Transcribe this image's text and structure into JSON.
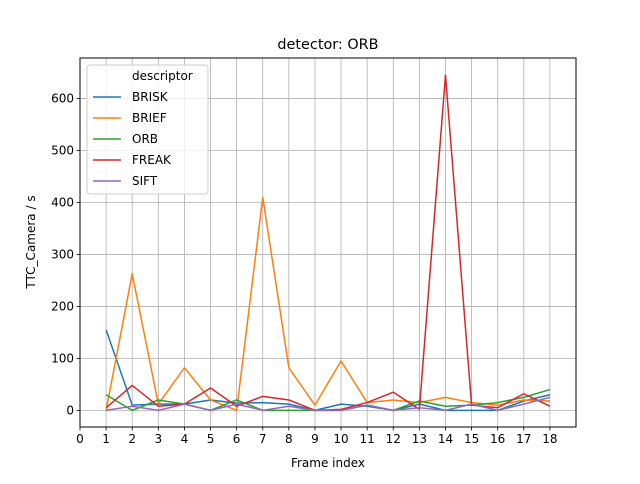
{
  "chart_data": {
    "type": "line",
    "title": "detector: ORB",
    "xlabel": "Frame index",
    "ylabel": "TTC_Camera / s",
    "xlim": [
      0,
      19
    ],
    "ylim": [
      -32,
      678
    ],
    "xticks": [
      0,
      1,
      2,
      3,
      4,
      5,
      6,
      7,
      8,
      9,
      10,
      11,
      12,
      13,
      14,
      15,
      16,
      17,
      18
    ],
    "yticks": [
      0,
      100,
      200,
      300,
      400,
      500,
      600
    ],
    "grid": true,
    "legend": {
      "title": "descriptor",
      "placement": "top-left"
    },
    "x": [
      1,
      2,
      3,
      4,
      5,
      6,
      7,
      8,
      9,
      10,
      11,
      12,
      13,
      14,
      15,
      16,
      17,
      18
    ],
    "series": [
      {
        "name": "BRISK",
        "color": "#1f77b4",
        "values": [
          155,
          10,
          12,
          12,
          20,
          14,
          15,
          12,
          0,
          12,
          8,
          0,
          12,
          0,
          0,
          0,
          18,
          30
        ]
      },
      {
        "name": "BRIEF",
        "color": "#ff7f0e",
        "values": [
          0,
          263,
          12,
          82,
          20,
          0,
          410,
          82,
          10,
          95,
          15,
          20,
          15,
          25,
          15,
          10,
          20,
          18
        ]
      },
      {
        "name": "ORB",
        "color": "#2ca02c",
        "values": [
          30,
          0,
          20,
          12,
          0,
          20,
          0,
          0,
          0,
          0,
          10,
          0,
          18,
          8,
          10,
          15,
          25,
          40
        ]
      },
      {
        "name": "FREAK",
        "color": "#d62728",
        "values": [
          5,
          48,
          8,
          12,
          43,
          8,
          27,
          20,
          0,
          2,
          15,
          35,
          2,
          645,
          10,
          5,
          32,
          8
        ]
      },
      {
        "name": "SIFT",
        "color": "#9467bd",
        "values": [
          0,
          8,
          0,
          12,
          0,
          12,
          0,
          8,
          0,
          0,
          10,
          0,
          5,
          0,
          12,
          0,
          12,
          25
        ]
      }
    ]
  }
}
